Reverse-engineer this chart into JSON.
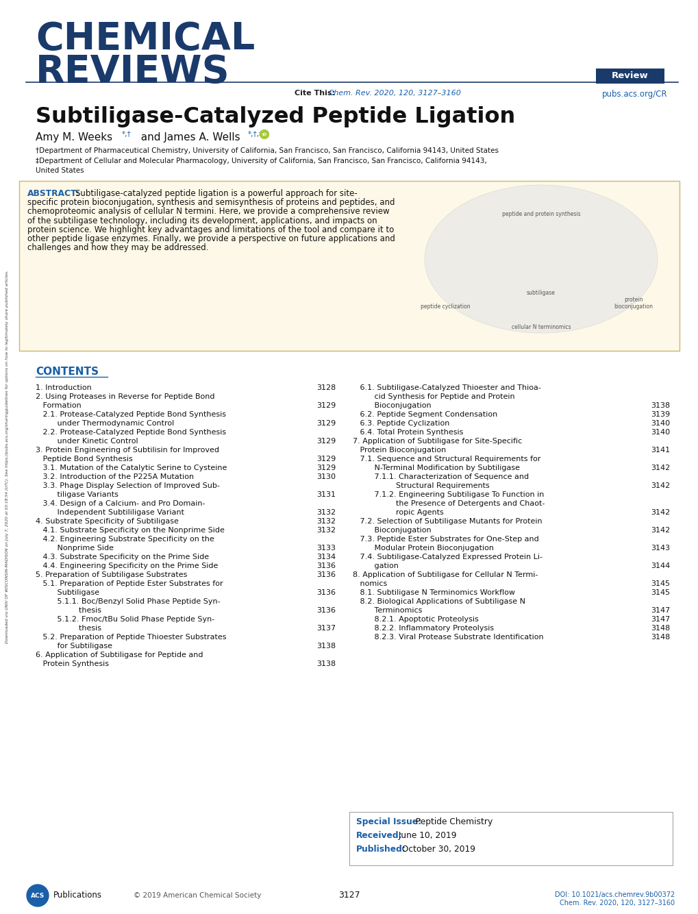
{
  "bg_color": "#ffffff",
  "header_blue": "#1a3a6b",
  "link_blue": "#1a5fa8",
  "abstract_bg": "#fdf8e8",
  "abstract_border": "#c8b86e",
  "contents_color": "#1a5fa8",
  "review_box_color": "#1a3a6b",
  "journal_name_line1": "CHEMICAL",
  "journal_name_line2": "REVIEWS",
  "cite_bold": "Cite This:",
  "cite_italic": " Chem. Rev. 2020, 120, 3127–3160",
  "review_label": "Review",
  "pubs_link": "pubs.acs.org/CR",
  "article_title": "Subtiligase-Catalyzed Peptide Ligation",
  "author_main": "Amy M. Weeks",
  "author_super1": "*,†",
  "author_and": "  and James A. Wells",
  "author_super2": "*,†,‡",
  "affil1": "†Department of Pharmaceutical Chemistry, University of California, San Francisco, San Francisco, California 94143, United States",
  "affil2": "‡Department of Cellular and Molecular Pharmacology, University of California, San Francisco, San Francisco, California 94143,",
  "affil2b": "United States",
  "abstract_label": "ABSTRACT:",
  "abstract_lines": [
    "Subtiligase-catalyzed peptide ligation is a powerful approach for site-",
    "specific protein bioconjugation, synthesis and semisynthesis of proteins and peptides, and",
    "chemoproteomic analysis of cellular N termini. Here, we provide a comprehensive review",
    "of the subtiligase technology, including its development, applications, and impacts on",
    "protein science. We highlight key advantages and limitations of the tool and compare it to",
    "other peptide ligase enzymes. Finally, we provide a perspective on future applications and",
    "challenges and how they may be addressed."
  ],
  "img_label_top": "peptide and protein synthesis",
  "img_label_left": "peptide cyclization",
  "img_label_mid": "subtiligase",
  "img_label_right": "protein\nbioconjugation",
  "img_label_bot": "cellular N terminomics",
  "contents_title": "CONTENTS",
  "toc_left_entries": [
    [
      "1. Introduction",
      "3128"
    ],
    [
      "2. Using Proteases in Reverse for Peptide Bond",
      ""
    ],
    [
      "   Formation",
      "3129"
    ],
    [
      "   2.1. Protease-Catalyzed Peptide Bond Synthesis",
      ""
    ],
    [
      "         under Thermodynamic Control",
      "3129"
    ],
    [
      "   2.2. Protease-Catalyzed Peptide Bond Synthesis",
      ""
    ],
    [
      "         under Kinetic Control",
      "3129"
    ],
    [
      "3. Protein Engineering of Subtilisin for Improved",
      ""
    ],
    [
      "   Peptide Bond Synthesis",
      "3129"
    ],
    [
      "   3.1. Mutation of the Catalytic Serine to Cysteine",
      "3129"
    ],
    [
      "   3.2. Introduction of the P225A Mutation",
      "3130"
    ],
    [
      "   3.3. Phage Display Selection of Improved Sub-",
      ""
    ],
    [
      "         tiligase Variants",
      "3131"
    ],
    [
      "   3.4. Design of a Calcium- and Pro Domain-",
      ""
    ],
    [
      "         Independent Subtililigase Variant",
      "3132"
    ],
    [
      "4. Substrate Specificity of Subtiligase",
      "3132"
    ],
    [
      "   4.1. Substrate Specificity on the Nonprime Side",
      "3132"
    ],
    [
      "   4.2. Engineering Substrate Specificity on the",
      ""
    ],
    [
      "         Nonprime Side",
      "3133"
    ],
    [
      "   4.3. Substrate Specificity on the Prime Side",
      "3134"
    ],
    [
      "   4.4. Engineering Specificity on the Prime Side",
      "3136"
    ],
    [
      "5. Preparation of Subtiligase Substrates",
      "3136"
    ],
    [
      "   5.1. Preparation of Peptide Ester Substrates for",
      ""
    ],
    [
      "         Subtiligase",
      "3136"
    ],
    [
      "         5.1.1. Boc/Benzyl Solid Phase Peptide Syn-",
      ""
    ],
    [
      "                  thesis",
      "3136"
    ],
    [
      "         5.1.2. Fmoc/tBu Solid Phase Peptide Syn-",
      ""
    ],
    [
      "                  thesis",
      "3137"
    ],
    [
      "   5.2. Preparation of Peptide Thioester Substrates",
      ""
    ],
    [
      "         for Subtiligase",
      "3138"
    ],
    [
      "6. Application of Subtiligase for Peptide and",
      ""
    ],
    [
      "   Protein Synthesis",
      "3138"
    ]
  ],
  "toc_right_entries": [
    [
      "   6.1. Subtiligase-Catalyzed Thioester and Thioa-",
      ""
    ],
    [
      "         cid Synthesis for Peptide and Protein",
      ""
    ],
    [
      "         Bioconjugation",
      "3138"
    ],
    [
      "   6.2. Peptide Segment Condensation",
      "3139"
    ],
    [
      "   6.3. Peptide Cyclization",
      "3140"
    ],
    [
      "   6.4. Total Protein Synthesis",
      "3140"
    ],
    [
      "7. Application of Subtiligase for Site-Specific",
      ""
    ],
    [
      "   Protein Bioconjugation",
      "3141"
    ],
    [
      "   7.1. Sequence and Structural Requirements for",
      ""
    ],
    [
      "         N-Terminal Modification by Subtiligase",
      "3142"
    ],
    [
      "         7.1.1. Characterization of Sequence and",
      ""
    ],
    [
      "                  Structural Requirements",
      "3142"
    ],
    [
      "         7.1.2. Engineering Subtiligase To Function in",
      ""
    ],
    [
      "                  the Presence of Detergents and Chaot-",
      ""
    ],
    [
      "                  ropic Agents",
      "3142"
    ],
    [
      "   7.2. Selection of Subtiligase Mutants for Protein",
      ""
    ],
    [
      "         Bioconjugation",
      "3142"
    ],
    [
      "   7.3. Peptide Ester Substrates for One-Step and",
      ""
    ],
    [
      "         Modular Protein Bioconjugation",
      "3143"
    ],
    [
      "   7.4. Subtiligase-Catalyzed Expressed Protein Li-",
      ""
    ],
    [
      "         gation",
      "3144"
    ],
    [
      "8. Application of Subtiligase for Cellular N Termi-",
      ""
    ],
    [
      "   nomics",
      "3145"
    ],
    [
      "   8.1. Subtiligase N Terminomics Workflow",
      "3145"
    ],
    [
      "   8.2. Biological Applications of Subtiligase N",
      ""
    ],
    [
      "         Terminomics",
      "3147"
    ],
    [
      "         8.2.1. Apoptotic Proteolysis",
      "3147"
    ],
    [
      "         8.2.2. Inflammatory Proteolysis",
      "3148"
    ],
    [
      "         8.2.3. Viral Protease Substrate Identification",
      "3148"
    ]
  ],
  "special_issue_label": "Special Issue:",
  "special_issue_text": "  Peptide Chemistry",
  "received_label": "Received:",
  "received_date": "  June 10, 2019",
  "published_label": "Published:",
  "published_date": "  October 30, 2019",
  "page_number": "3127",
  "copyright": "© 2019 American Chemical Society",
  "doi_line1": "DOI: 10.1021/acs.chemrev.9b00372",
  "doi_line2": "Chem. Rev. 2020, 120, 3127–3160",
  "sidebar_line1": "Downloaded via UNIV OF WISCONSIN-MADISON on July 7, 2020 at 03:18:54 (UTC).",
  "sidebar_line2": "See https://pubs.acs.org/sharingguidelines for options on how to legitimately share published articles."
}
